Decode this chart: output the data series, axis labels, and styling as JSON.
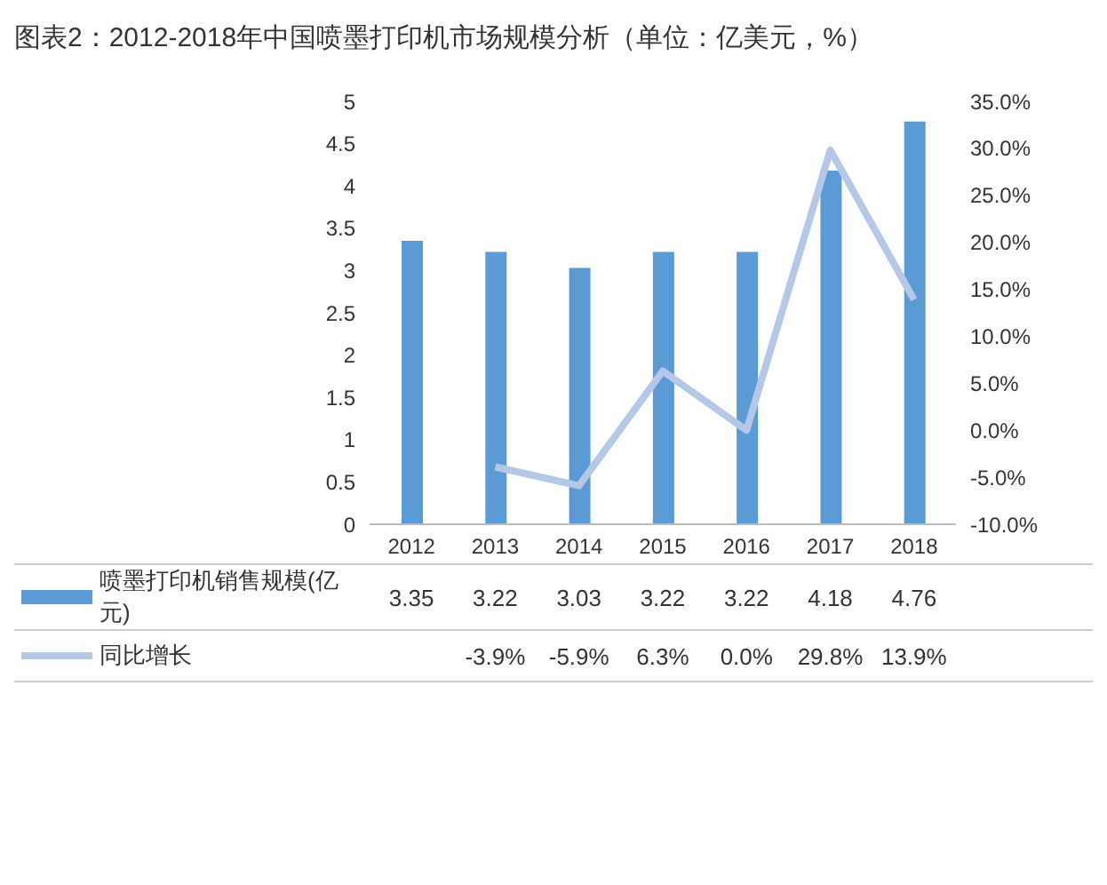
{
  "chart_data": {
    "type": "bar",
    "title": "图表2：2012-2018年中国喷墨打印机市场规模分析（单位：亿美元，%）",
    "categories": [
      "2012",
      "2013",
      "2014",
      "2015",
      "2016",
      "2017",
      "2018"
    ],
    "series": [
      {
        "name": "喷墨打印机销售规模(亿元)",
        "color": "#5b9bd5",
        "values": [
          3.35,
          3.22,
          3.03,
          3.22,
          3.22,
          4.18,
          4.76
        ]
      },
      {
        "name": "同比增长",
        "type": "line",
        "axis": "y2",
        "color": "#b4c7e7",
        "values": [
          null,
          -3.9,
          -5.9,
          6.3,
          0.0,
          29.8,
          13.9
        ],
        "value_labels": [
          null,
          "-3.9%",
          "-5.9%",
          "6.3%",
          "0.0%",
          "29.8%",
          "13.9%"
        ]
      }
    ],
    "ylim": [
      0,
      5
    ],
    "yticks": [
      0,
      0.5,
      1,
      1.5,
      2,
      2.5,
      3,
      3.5,
      4,
      4.5,
      5
    ],
    "y2lim": [
      -10,
      35
    ],
    "y2ticks": [
      {
        "value": -10,
        "label": "-10.0%"
      },
      {
        "value": -5,
        "label": "-5.0%"
      },
      {
        "value": 0,
        "label": "0.0%"
      },
      {
        "value": 5,
        "label": "5.0%"
      },
      {
        "value": 10,
        "label": "10.0%"
      },
      {
        "value": 15,
        "label": "15.0%"
      },
      {
        "value": 20,
        "label": "20.0%"
      },
      {
        "value": 25,
        "label": "25.0%"
      },
      {
        "value": 30,
        "label": "30.0%"
      },
      {
        "value": 35,
        "label": "35.0%"
      }
    ],
    "data_labels": true,
    "legend": "bottom left"
  }
}
